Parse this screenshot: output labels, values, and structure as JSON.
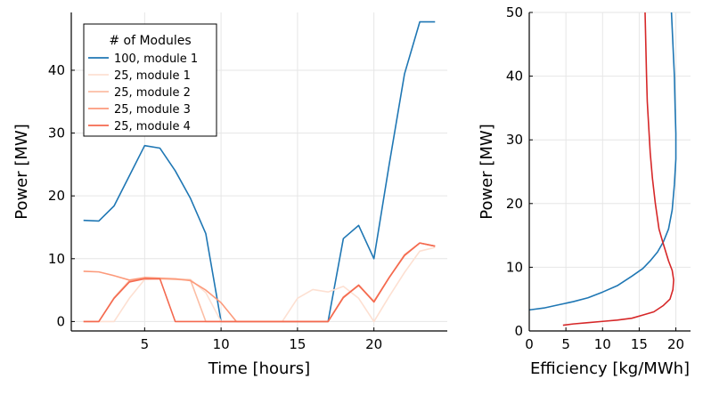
{
  "chart_data": [
    {
      "type": "line",
      "xlabel": "Time [hours]",
      "ylabel": "Power [MW]",
      "xlim": [
        0.2,
        24.8
      ],
      "ylim": [
        -1.5,
        49.2
      ],
      "xticks": [
        5,
        10,
        15,
        20
      ],
      "yticks": [
        0,
        10,
        20,
        30,
        40
      ],
      "grid": true,
      "legend": {
        "title": "# of Modules",
        "placement": "top-left"
      },
      "x": [
        1,
        2,
        3,
        4,
        5,
        6,
        7,
        8,
        9,
        10,
        11,
        12,
        13,
        14,
        15,
        16,
        17,
        18,
        19,
        20,
        21,
        22,
        23,
        24
      ],
      "series": [
        {
          "name": "100, module 1",
          "color": "#1f77b4",
          "values": [
            16.1,
            16.0,
            18.4,
            23.2,
            28.0,
            27.6,
            24.0,
            19.6,
            14.0,
            0,
            0,
            0,
            0,
            0,
            0,
            0,
            0,
            13.2,
            15.3,
            10.0,
            25.0,
            39.4,
            47.7,
            47.7
          ]
        },
        {
          "name": "25, module 1",
          "color": "#fde0d2",
          "values": [
            0,
            0,
            0,
            3.7,
            6.7,
            6.8,
            6.8,
            6.7,
            4.6,
            0,
            0,
            0,
            0,
            0,
            3.7,
            5.1,
            4.7,
            5.6,
            3.7,
            0,
            4.0,
            7.8,
            11.2,
            11.8
          ]
        },
        {
          "name": "25, module 2",
          "color": "#fcbea5",
          "values": [
            0,
            0,
            3.8,
            6.5,
            6.9,
            6.8,
            6.7,
            6.6,
            0,
            0,
            0,
            0,
            0,
            0,
            0,
            0,
            0,
            3.9,
            5.7,
            3.2,
            7.0,
            10.6,
            12.5,
            12.0
          ]
        },
        {
          "name": "25, module 3",
          "color": "#fc9a7b",
          "values": [
            8.0,
            7.9,
            7.3,
            6.6,
            7.0,
            6.9,
            6.8,
            6.5,
            5.0,
            3.0,
            0,
            0,
            0,
            0,
            0,
            0,
            0,
            3.9,
            5.8,
            3.2,
            7.0,
            10.6,
            12.5,
            12.0
          ]
        },
        {
          "name": "25, module 4",
          "color": "#f4694f",
          "values": [
            0,
            0,
            3.7,
            6.3,
            6.8,
            6.8,
            0,
            0,
            0,
            0,
            0,
            0,
            0,
            0,
            0,
            0,
            0,
            3.8,
            5.8,
            3.1,
            7.0,
            10.5,
            12.5,
            12.0
          ]
        }
      ]
    },
    {
      "type": "line",
      "xlabel": "Efficiency [kg/MWh]",
      "ylabel": "Power [MW]",
      "xlim": [
        0,
        22
      ],
      "ylim": [
        0,
        50
      ],
      "xticks": [
        0,
        5,
        10,
        15,
        20
      ],
      "yticks": [
        0,
        10,
        20,
        30,
        40,
        50
      ],
      "grid": true,
      "series": [
        {
          "color": "#1f77b4",
          "points": [
            [
              0,
              3.3
            ],
            [
              2,
              3.6
            ],
            [
              4,
              4.1
            ],
            [
              6,
              4.6
            ],
            [
              8,
              5.2
            ],
            [
              10,
              6.1
            ],
            [
              12,
              7.1
            ],
            [
              14,
              8.6
            ],
            [
              15.5,
              9.8
            ],
            [
              16.5,
              11.0
            ],
            [
              17.5,
              12.4
            ],
            [
              18.3,
              14.0
            ],
            [
              19.0,
              16.0
            ],
            [
              19.5,
              19.0
            ],
            [
              19.8,
              23.0
            ],
            [
              20.0,
              27.0
            ],
            [
              20.0,
              31.0
            ],
            [
              19.9,
              35.0
            ],
            [
              19.8,
              40.0
            ],
            [
              19.6,
              45.0
            ],
            [
              19.4,
              50.0
            ]
          ]
        },
        {
          "color": "#d62728",
          "points": [
            [
              4.6,
              0.9
            ],
            [
              6,
              1.1
            ],
            [
              8,
              1.3
            ],
            [
              10,
              1.5
            ],
            [
              12,
              1.7
            ],
            [
              14,
              2.0
            ],
            [
              15.5,
              2.5
            ],
            [
              17,
              3.0
            ],
            [
              18.3,
              4.0
            ],
            [
              19.2,
              5.0
            ],
            [
              19.6,
              6.5
            ],
            [
              19.7,
              8.0
            ],
            [
              19.5,
              9.5
            ],
            [
              19.0,
              11.0
            ],
            [
              18.6,
              12.5
            ],
            [
              18.2,
              14.0
            ],
            [
              17.7,
              16.0
            ],
            [
              17.2,
              20.0
            ],
            [
              16.8,
              24.0
            ],
            [
              16.5,
              28.0
            ],
            [
              16.3,
              32.0
            ],
            [
              16.1,
              36.0
            ],
            [
              16.0,
              40.0
            ],
            [
              15.9,
              45.0
            ],
            [
              15.8,
              50.0
            ]
          ]
        }
      ]
    }
  ]
}
